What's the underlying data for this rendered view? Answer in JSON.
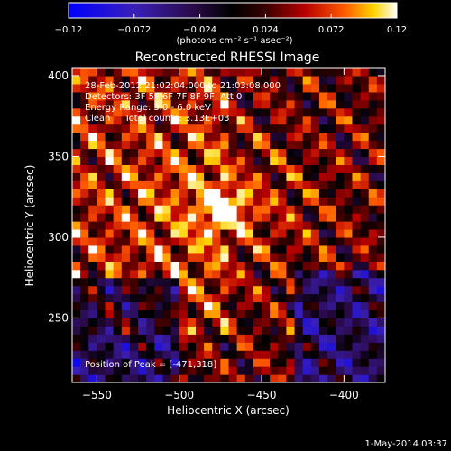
{
  "chart_data": {
    "type": "heatmap",
    "title": "Reconstructed RHESSI Image",
    "xlabel": "Heliocentric X (arcsec)",
    "ylabel": "Heliocentric Y (arcsec)",
    "xlim": [
      -565,
      -375
    ],
    "ylim": [
      210,
      405
    ],
    "x_ticks": [
      -550,
      -500,
      -450,
      -400
    ],
    "x_tick_labels": [
      "−550",
      "−500",
      "−450",
      "−400"
    ],
    "y_ticks": [
      250,
      300,
      350,
      400
    ],
    "y_tick_labels": [
      "250",
      "300",
      "350",
      "400"
    ],
    "colorbar": {
      "range": [
        -0.12,
        0.12
      ],
      "ticks": [
        -0.12,
        -0.072,
        -0.024,
        0.024,
        0.072,
        0.12
      ],
      "tick_labels": [
        "−0.12",
        "−0.072",
        "−0.024",
        "0.024",
        "0.072",
        "0.12"
      ],
      "unit_label": "(photons cm⁻² s⁻¹ asec⁻²)",
      "colors": [
        "#0000ff",
        "#3a1fb8",
        "#2a0a48",
        "#000000",
        "#3a0000",
        "#b80000",
        "#ff5a00",
        "#ffd400",
        "#ffffff"
      ]
    },
    "annotations": [
      "28-Feb-2012 21:02:04.000 to 21:03:08.000",
      "Detectors: 3F 5F 6F 7F 8F 9F, Att 0",
      "Energy Range: 3.0 - 6.0 keV",
      "Clean     Total counts: 3.13E+03"
    ],
    "peak_label": "Position of Peak = [-471,318]",
    "peak": {
      "x": -471,
      "y": 318
    },
    "grid": false,
    "timestamp": "1-May-2014 03:37"
  }
}
